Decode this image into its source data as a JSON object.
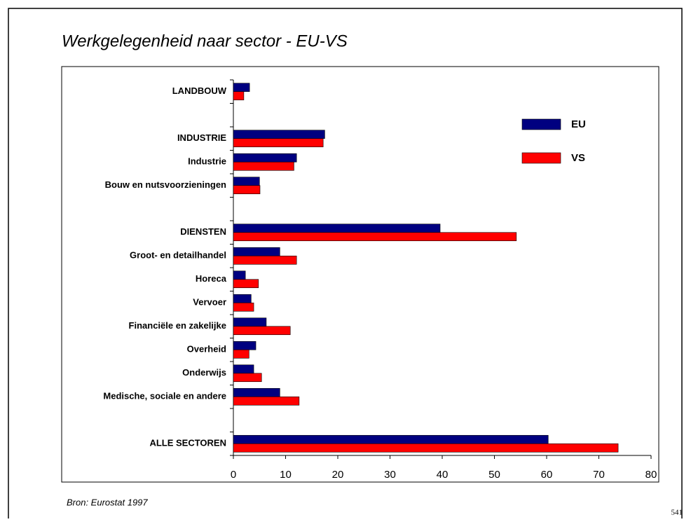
{
  "chart_data": {
    "type": "barh",
    "title": "Werkgelegenheid naar sector - EU-VS",
    "source": "Bron: Eurostat 1997",
    "page_number": "541",
    "categories": [
      "LANDBOUW",
      null,
      "INDUSTRIE",
      "Industrie",
      "Bouw en nutsvoorzieningen",
      null,
      "DIENSTEN",
      "Groot- en detailhandel",
      "Horeca",
      "Vervoer",
      "Financiële en zakelijke",
      "Overheid",
      "Onderwijs",
      "Medische, sociale en andere",
      null,
      "ALLE SECTOREN"
    ],
    "series": [
      {
        "name": "EU",
        "color": "#000080",
        "values": [
          3.1,
          null,
          17.5,
          12.1,
          5.0,
          null,
          39.6,
          8.9,
          2.3,
          3.4,
          6.3,
          4.3,
          3.9,
          8.9,
          null,
          60.3
        ]
      },
      {
        "name": "VS",
        "color": "#ff0000",
        "values": [
          2.0,
          null,
          17.2,
          11.6,
          5.1,
          null,
          54.2,
          12.1,
          4.8,
          3.9,
          10.9,
          3.0,
          5.4,
          12.6,
          null,
          73.7
        ]
      }
    ],
    "xlim": [
      0,
      80
    ],
    "xticks": [
      0,
      10,
      20,
      30,
      40,
      50,
      60,
      70,
      80
    ],
    "legend": "upper right"
  }
}
